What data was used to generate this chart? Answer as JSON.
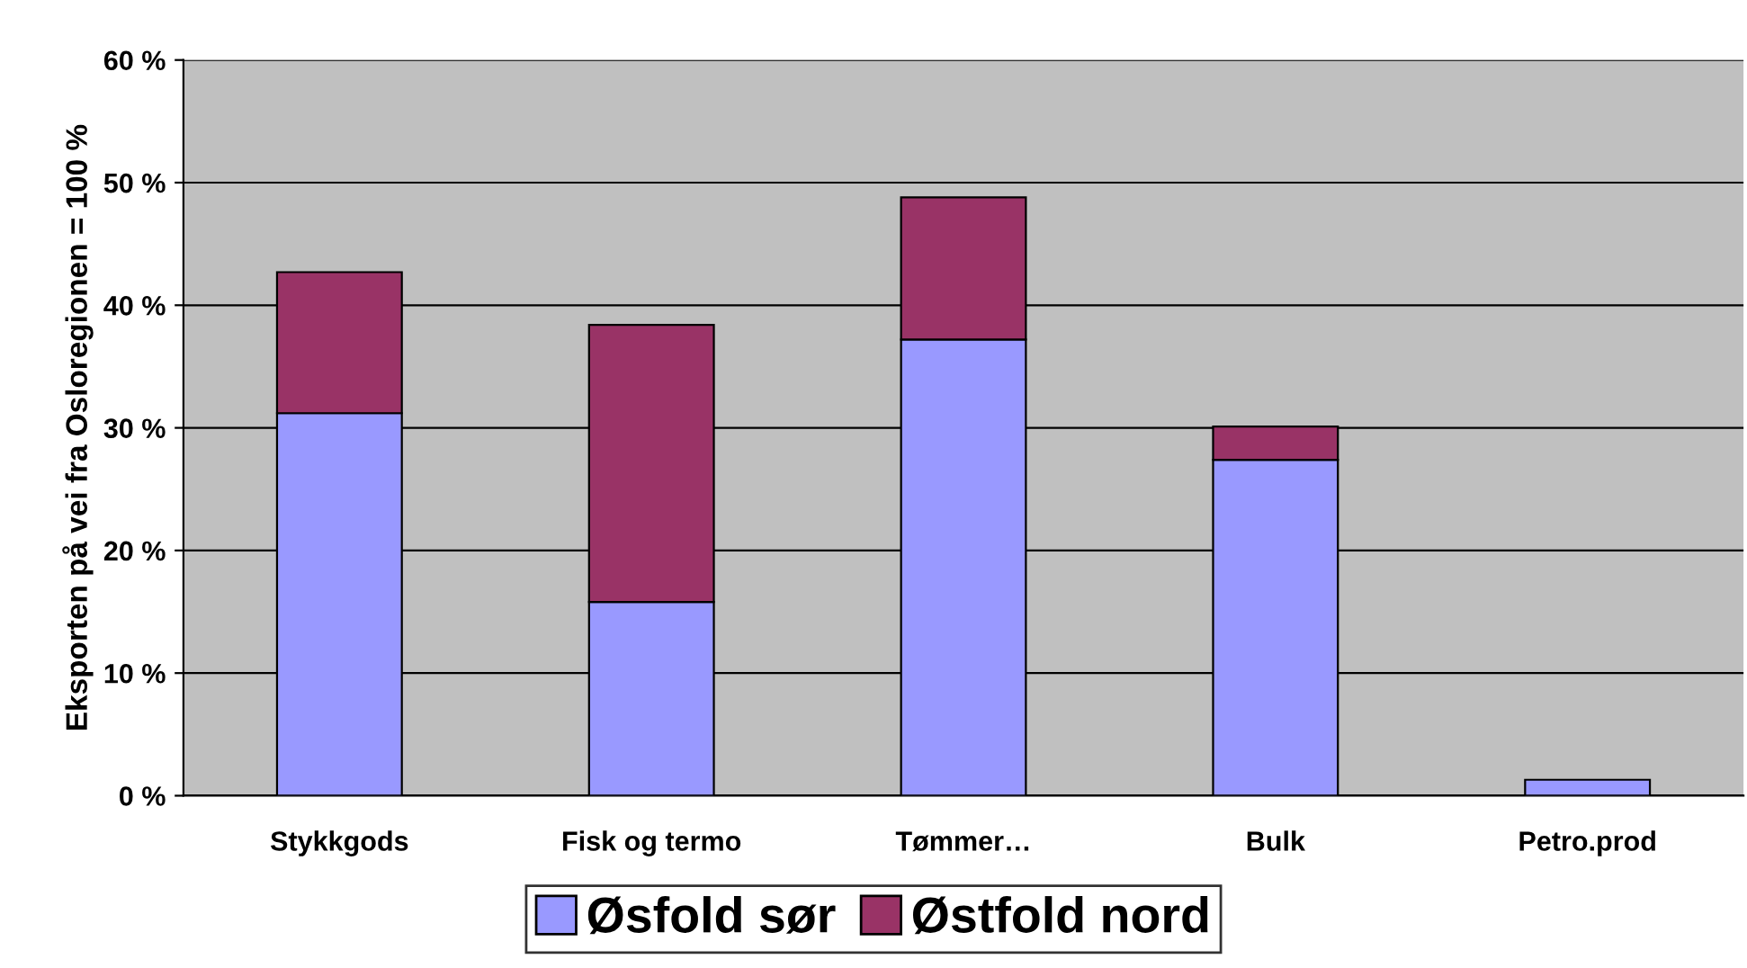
{
  "chart_data": {
    "type": "bar",
    "stacked": true,
    "ylabel": "Eksporten på vei fra Osloregionen = 100 %",
    "categories": [
      "Stykkgods",
      "Fisk og termo",
      "Tømmer…",
      "Bulk",
      "Petro.prod"
    ],
    "series": [
      {
        "name": "Øsfold sør",
        "color": "#9999ff",
        "values": [
          31.2,
          15.8,
          37.2,
          27.4,
          1.3
        ]
      },
      {
        "name": "Østfold nord",
        "color": "#993366",
        "values": [
          11.5,
          22.6,
          11.6,
          2.7,
          null
        ]
      }
    ],
    "ylim": [
      0,
      60
    ],
    "yticks": [
      {
        "value": 0,
        "label": "0 %"
      },
      {
        "value": 10,
        "label": "10 %"
      },
      {
        "value": 20,
        "label": "20 %"
      },
      {
        "value": 30,
        "label": "30 %"
      },
      {
        "value": 40,
        "label": "40 %"
      },
      {
        "value": 50,
        "label": "50 %"
      },
      {
        "value": 60,
        "label": "60 %"
      }
    ],
    "grid": "y",
    "legend": "bottom"
  }
}
